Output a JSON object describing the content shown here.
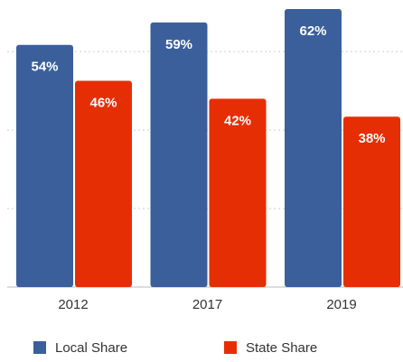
{
  "chart_data": {
    "type": "bar",
    "categories": [
      "2012",
      "2017",
      "2019"
    ],
    "series": [
      {
        "name": "Local Share",
        "color": "#3a5f9b",
        "values": [
          54,
          59,
          62
        ],
        "value_labels": [
          "54%",
          "59%",
          "62%"
        ]
      },
      {
        "name": "State Share",
        "color": "#e62e05",
        "values": [
          46,
          42,
          38
        ],
        "value_labels": [
          "46%",
          "42%",
          "38%"
        ]
      }
    ],
    "ylim": [
      0,
      64
    ],
    "yticks": [
      17.5,
      35,
      52.5
    ],
    "grid": true
  }
}
